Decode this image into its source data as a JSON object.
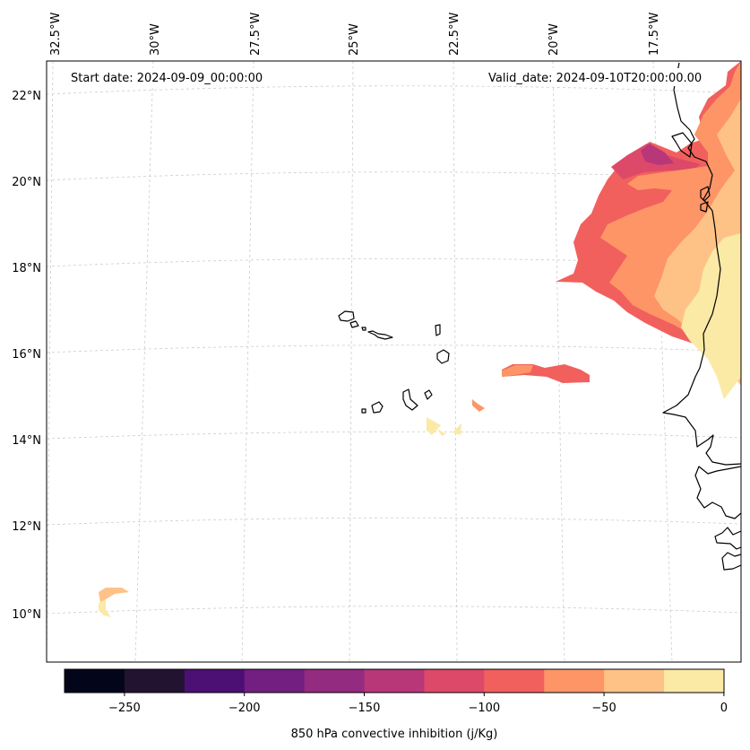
{
  "map": {
    "start_label": "Start date: 2024-09-09_00:00:00",
    "valid_label": "Valid_date: 2024-09-10T20:00:00.00",
    "lon_labels": [
      "32.5°W",
      "30°W",
      "27.5°W",
      "25°W",
      "22.5°W",
      "20°W",
      "17.5°W"
    ],
    "lat_labels": [
      "22°N",
      "20°N",
      "18°N",
      "16°N",
      "14°N",
      "12°N",
      "10°N"
    ]
  },
  "colorbar": {
    "title": "850 hPa convective inhibition (j/Kg)",
    "tick_labels": [
      "−250",
      "−200",
      "−150",
      "−100",
      "−50",
      "0"
    ],
    "colors": [
      "#03051a",
      "#221331",
      "#4c0f73",
      "#721f81",
      "#932b80",
      "#b73779",
      "#dd4968",
      "#f1605d",
      "#fd9567",
      "#fec287",
      "#fbe9a6"
    ]
  },
  "colors": {
    "coast": "#000000",
    "grid": "#cccccc"
  }
}
